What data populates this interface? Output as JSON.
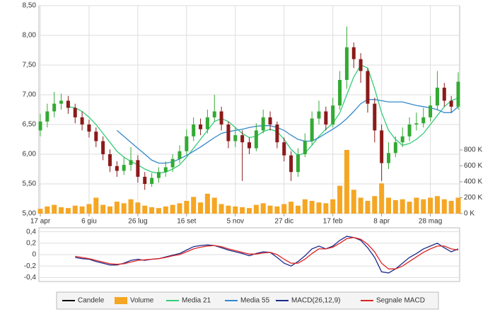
{
  "chart_data": [
    {
      "type": "candlestick",
      "name": "Candele",
      "color": "#000000",
      "up_color": "#33aa33",
      "down_color": "#8b1a1a",
      "categories": [
        "17 apr",
        null,
        null,
        null,
        null,
        null,
        null,
        "6 giu",
        null,
        null,
        null,
        null,
        null,
        null,
        "26 lug",
        null,
        null,
        null,
        null,
        null,
        null,
        "16 set",
        null,
        null,
        null,
        null,
        null,
        null,
        "5 nov",
        null,
        null,
        null,
        null,
        null,
        null,
        "27 dic",
        null,
        null,
        null,
        null,
        null,
        null,
        "17 feb",
        null,
        null,
        null,
        null,
        null,
        null,
        "8 apr",
        null,
        null,
        null,
        null,
        null,
        null,
        "28 mag",
        null,
        null,
        null,
        null
      ],
      "open": [
        6.4,
        6.55,
        6.72,
        6.85,
        6.9,
        6.78,
        6.62,
        6.5,
        6.38,
        6.22,
        6.0,
        5.8,
        5.72,
        5.82,
        5.9,
        5.62,
        5.5,
        5.6,
        5.7,
        5.78,
        5.92,
        6.05,
        6.3,
        6.5,
        6.42,
        6.62,
        6.72,
        6.5,
        6.22,
        6.32,
        6.2,
        6.1,
        6.4,
        6.62,
        6.5,
        6.2,
        5.98,
        5.7,
        6.0,
        6.22,
        6.6,
        6.72,
        6.5,
        6.82,
        7.25,
        7.8,
        7.6,
        7.4,
        6.85,
        6.4,
        5.85,
        6.02,
        6.2,
        6.3,
        6.5,
        6.52,
        6.62,
        6.82,
        7.12,
        6.9,
        6.8
      ],
      "high": [
        6.68,
        6.85,
        7.05,
        7.02,
        6.98,
        6.85,
        6.72,
        6.58,
        6.45,
        6.3,
        6.08,
        5.88,
        5.95,
        6.12,
        5.98,
        5.7,
        5.68,
        5.78,
        5.88,
        6.0,
        6.15,
        6.42,
        6.62,
        6.6,
        6.75,
        7.0,
        6.8,
        6.55,
        6.45,
        6.4,
        6.28,
        6.52,
        6.75,
        6.72,
        6.55,
        6.28,
        6.05,
        6.1,
        6.35,
        6.72,
        6.9,
        6.8,
        6.95,
        7.4,
        8.15,
        7.88,
        7.7,
        7.45,
        6.95,
        6.5,
        6.2,
        6.3,
        6.45,
        6.62,
        6.7,
        6.78,
        6.98,
        7.4,
        7.2,
        6.98,
        7.38
      ],
      "low": [
        6.3,
        6.45,
        6.62,
        6.75,
        6.68,
        6.52,
        6.4,
        6.28,
        6.12,
        5.9,
        5.7,
        5.62,
        5.65,
        5.72,
        5.52,
        5.4,
        5.45,
        5.52,
        5.62,
        5.7,
        5.85,
        5.98,
        6.22,
        6.32,
        6.35,
        6.55,
        6.4,
        6.1,
        6.12,
        5.55,
        6.0,
        6.05,
        6.35,
        6.4,
        6.1,
        5.88,
        5.55,
        5.62,
        5.95,
        6.15,
        6.5,
        6.4,
        6.45,
        6.75,
        7.1,
        7.45,
        7.2,
        6.7,
        6.2,
        5.55,
        5.75,
        5.95,
        6.12,
        6.22,
        6.4,
        6.45,
        6.55,
        6.75,
        6.8,
        6.7,
        6.75
      ],
      "close": [
        6.55,
        6.72,
        6.85,
        6.9,
        6.78,
        6.62,
        6.5,
        6.38,
        6.22,
        6.0,
        5.8,
        5.72,
        5.82,
        5.9,
        5.62,
        5.5,
        5.6,
        5.7,
        5.78,
        5.92,
        6.05,
        6.3,
        6.5,
        6.42,
        6.62,
        6.72,
        6.5,
        6.22,
        6.32,
        6.2,
        6.1,
        6.4,
        6.62,
        6.5,
        6.2,
        5.98,
        5.7,
        6.0,
        6.22,
        6.6,
        6.72,
        6.5,
        6.82,
        7.25,
        7.8,
        7.6,
        7.4,
        6.85,
        6.4,
        5.85,
        6.02,
        6.2,
        6.3,
        6.5,
        6.52,
        6.62,
        6.82,
        7.12,
        6.9,
        6.8,
        7.22
      ],
      "ylim": [
        5,
        8.5
      ],
      "yticks": [
        {
          "value": 5,
          "label": "5,00"
        },
        {
          "value": 5.5,
          "label": "5,50"
        },
        {
          "value": 6,
          "label": "6,00"
        },
        {
          "value": 6.5,
          "label": "6,50"
        },
        {
          "value": 7,
          "label": "7,00"
        },
        {
          "value": 7.5,
          "label": "7,50"
        },
        {
          "value": 8,
          "label": "8,00"
        },
        {
          "value": 8.5,
          "label": "8,50"
        }
      ],
      "grid": true,
      "series": [
        {
          "name": "Media 21",
          "color": "#33cc77",
          "values": [
            null,
            null,
            null,
            null,
            6.8,
            6.78,
            6.72,
            6.62,
            6.5,
            6.35,
            6.2,
            6.05,
            5.95,
            5.88,
            5.82,
            5.75,
            5.7,
            5.68,
            5.7,
            5.75,
            5.82,
            5.95,
            6.1,
            6.25,
            6.4,
            6.55,
            6.6,
            6.55,
            6.45,
            6.35,
            6.28,
            6.3,
            6.38,
            6.42,
            6.38,
            6.25,
            6.08,
            5.98,
            6.02,
            6.15,
            6.3,
            6.42,
            6.52,
            6.7,
            7.0,
            7.3,
            7.5,
            7.45,
            7.1,
            6.7,
            6.4,
            6.25,
            6.15,
            6.18,
            6.25,
            6.35,
            6.5,
            6.65,
            6.8,
            6.9,
            6.95
          ]
        },
        {
          "name": "Media 55",
          "color": "#3388cc",
          "values": [
            null,
            null,
            null,
            null,
            null,
            null,
            null,
            null,
            null,
            null,
            null,
            6.4,
            6.3,
            6.2,
            6.1,
            6.0,
            5.9,
            5.85,
            5.85,
            5.87,
            5.92,
            5.98,
            6.05,
            6.12,
            6.2,
            6.28,
            6.35,
            6.38,
            6.4,
            6.42,
            6.45,
            6.47,
            6.48,
            6.48,
            6.45,
            6.4,
            6.32,
            6.25,
            6.22,
            6.22,
            6.28,
            6.35,
            6.42,
            6.5,
            6.6,
            6.72,
            6.85,
            6.92,
            6.92,
            6.9,
            6.88,
            6.88,
            6.88,
            6.85,
            6.82,
            6.8,
            6.78,
            6.75,
            6.7,
            6.7,
            6.8
          ]
        }
      ],
      "volume": {
        "name": "Volume",
        "color": "#f5a623",
        "values": [
          60000,
          90000,
          110000,
          80000,
          70000,
          100000,
          90000,
          120000,
          200000,
          110000,
          90000,
          150000,
          130000,
          180000,
          140000,
          100000,
          80000,
          70000,
          90000,
          110000,
          130000,
          160000,
          210000,
          140000,
          250000,
          200000,
          120000,
          100000,
          90000,
          80000,
          70000,
          110000,
          130000,
          100000,
          90000,
          120000,
          150000,
          100000,
          180000,
          160000,
          140000,
          130000,
          180000,
          350000,
          800000,
          300000,
          200000,
          160000,
          220000,
          380000,
          200000,
          170000,
          180000,
          150000,
          200000,
          180000,
          200000,
          220000,
          180000,
          160000,
          200000
        ],
        "y2lim": [
          0,
          800000
        ],
        "y2ticks": [
          {
            "value": 0,
            "label": "0 K"
          },
          {
            "value": 200000,
            "label": "200 K"
          },
          {
            "value": 400000,
            "label": "400 K"
          },
          {
            "value": 600000,
            "label": "600 K"
          },
          {
            "value": 800000,
            "label": "800 K"
          }
        ]
      }
    },
    {
      "type": "line",
      "ylim": [
        -0.47,
        0.47
      ],
      "yticks": [
        {
          "value": 0.4,
          "label": "0,4"
        },
        {
          "value": 0.2,
          "label": "0,2"
        },
        0,
        {
          "value": -0.2,
          "label": "-0,2"
        },
        {
          "value": -0.4,
          "label": "-0,4"
        }
      ],
      "grid": true,
      "series": [
        {
          "name": "MACD(26,12,9)",
          "color": "#1a2a8c",
          "values": [
            null,
            null,
            null,
            null,
            null,
            -0.05,
            -0.07,
            -0.08,
            -0.12,
            -0.15,
            -0.18,
            -0.18,
            -0.15,
            -0.1,
            -0.08,
            -0.1,
            -0.08,
            -0.07,
            -0.04,
            -0.01,
            0.02,
            0.08,
            0.14,
            0.16,
            0.17,
            0.16,
            0.12,
            0.08,
            0.05,
            0.02,
            -0.02,
            0.02,
            0.05,
            0.04,
            -0.05,
            -0.15,
            -0.2,
            -0.12,
            -0.02,
            0.1,
            0.15,
            0.1,
            0.15,
            0.25,
            0.32,
            0.3,
            0.25,
            0.12,
            -0.05,
            -0.3,
            -0.32,
            -0.25,
            -0.15,
            -0.05,
            0.02,
            0.1,
            0.15,
            0.2,
            0.12,
            0.05,
            0.1
          ]
        },
        {
          "name": "Segnale MACD",
          "color": "#dd2222",
          "values": [
            null,
            null,
            null,
            null,
            null,
            -0.03,
            -0.05,
            -0.07,
            -0.1,
            -0.13,
            -0.16,
            -0.17,
            -0.16,
            -0.13,
            -0.1,
            -0.09,
            -0.08,
            -0.07,
            -0.05,
            -0.02,
            0.0,
            0.05,
            0.1,
            0.13,
            0.15,
            0.16,
            0.14,
            0.1,
            0.07,
            0.04,
            0.01,
            0.01,
            0.03,
            0.04,
            0.0,
            -0.08,
            -0.15,
            -0.15,
            -0.08,
            0.02,
            0.1,
            0.1,
            0.13,
            0.2,
            0.28,
            0.3,
            0.27,
            0.18,
            0.05,
            -0.15,
            -0.25,
            -0.25,
            -0.2,
            -0.12,
            -0.04,
            0.04,
            0.1,
            0.15,
            0.15,
            0.1,
            0.08
          ]
        }
      ]
    }
  ]
}
